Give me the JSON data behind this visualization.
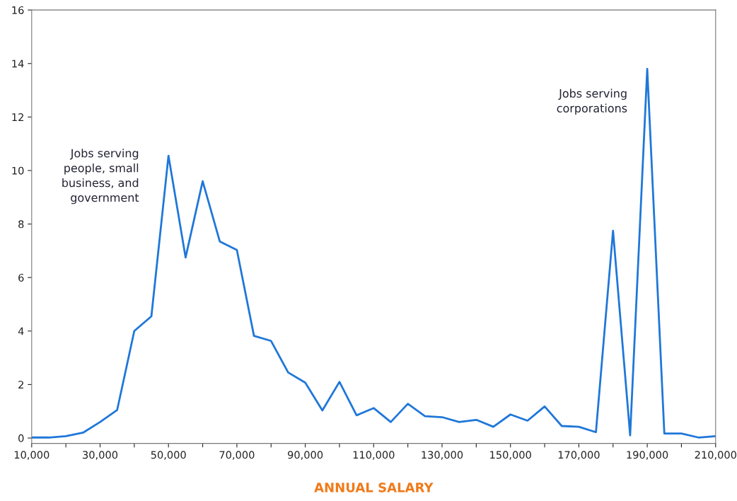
{
  "chart_data": {
    "type": "line",
    "xlabel": "ANNUAL SALARY",
    "x": [
      10000,
      15000,
      20000,
      25000,
      30000,
      35000,
      40000,
      45000,
      50000,
      55000,
      60000,
      65000,
      70000,
      75000,
      80000,
      85000,
      90000,
      95000,
      100000,
      105000,
      110000,
      115000,
      120000,
      125000,
      130000,
      135000,
      140000,
      145000,
      150000,
      155000,
      160000,
      165000,
      170000,
      175000,
      180000,
      185000,
      190000,
      195000,
      200000,
      205000,
      210000
    ],
    "series": [
      {
        "color": "#1f77d9",
        "values": [
          0.02,
          0.02,
          0.07,
          0.2,
          0.6,
          1.05,
          4.0,
          4.55,
          10.55,
          6.75,
          9.6,
          7.35,
          7.03,
          3.82,
          3.63,
          2.45,
          2.07,
          1.03,
          2.1,
          0.85,
          1.12,
          0.6,
          1.28,
          0.82,
          0.78,
          0.6,
          0.68,
          0.42,
          0.88,
          0.65,
          1.18,
          0.45,
          0.42,
          0.22,
          7.75,
          0.1,
          13.8,
          0.17,
          0.17,
          0.02,
          0.07
        ]
      }
    ],
    "xlim": [
      10000,
      210000
    ],
    "ylim": [
      -0.2,
      16
    ],
    "xticks": [
      {
        "value": 10000,
        "label": "10,000"
      },
      {
        "value": 20000,
        "label": null
      },
      {
        "value": 30000,
        "label": "30,000"
      },
      {
        "value": 40000,
        "label": null
      },
      {
        "value": 50000,
        "label": "50,000"
      },
      {
        "value": 60000,
        "label": null
      },
      {
        "value": 70000,
        "label": "70,000"
      },
      {
        "value": 80000,
        "label": null
      },
      {
        "value": 90000,
        "label": "90,000"
      },
      {
        "value": 100000,
        "label": null
      },
      {
        "value": 110000,
        "label": "110,000"
      },
      {
        "value": 120000,
        "label": null
      },
      {
        "value": 130000,
        "label": "130,000"
      },
      {
        "value": 140000,
        "label": null
      },
      {
        "value": 150000,
        "label": "150,000"
      },
      {
        "value": 160000,
        "label": null
      },
      {
        "value": 170000,
        "label": "170,000"
      },
      {
        "value": 180000,
        "label": null
      },
      {
        "value": 190000,
        "label": "190,000"
      },
      {
        "value": 200000,
        "label": null
      },
      {
        "value": 210000,
        "label": "210,000"
      }
    ],
    "yticks": [
      0,
      2,
      4,
      6,
      8,
      10,
      12,
      14,
      16
    ],
    "annotations": [
      "Jobs serving\npeople, small\nbusiness, and\ngovernment",
      "Jobs serving\ncorporations"
    ],
    "grid": false,
    "legend": false,
    "marker": "none",
    "line_style": "solid"
  }
}
